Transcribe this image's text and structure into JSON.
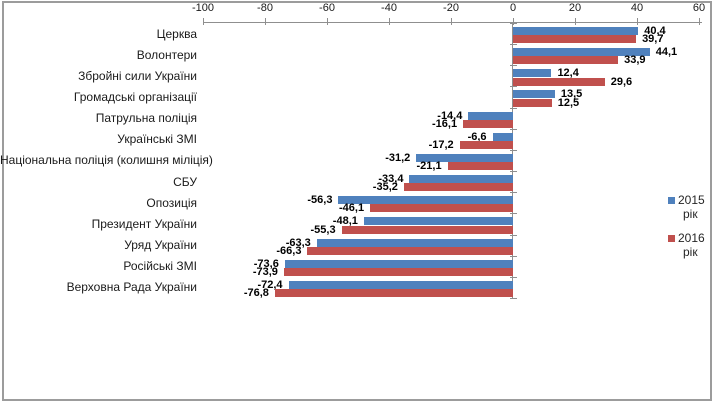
{
  "chart_data": {
    "type": "bar",
    "orientation": "horizontal",
    "title": "",
    "xlabel": "",
    "ylabel": "",
    "grid": false,
    "decimal_separator": ",",
    "categories": [
      "Церква",
      "Волонтери",
      "Збройні сили України",
      "Громадські організації",
      "Патрульна поліція",
      "Українські ЗМІ",
      "Національна поліція (колишня міліція)",
      "СБУ",
      "Опозиція",
      "Президент України",
      "Уряд України",
      "Російські ЗМІ",
      "Верховна Рада України"
    ],
    "series": [
      {
        "name": "2015 рік",
        "color": "#4f81bd",
        "values": [
          40.4,
          44.1,
          12.4,
          13.5,
          -14.4,
          -6.6,
          -31.2,
          -33.4,
          -56.3,
          -48.1,
          -63.3,
          -73.6,
          -72.4
        ]
      },
      {
        "name": "2016 рік",
        "color": "#c0504d",
        "values": [
          39.7,
          33.9,
          29.6,
          12.5,
          -16.1,
          -17.2,
          -21.1,
          -35.2,
          -46.1,
          -55.3,
          -66.3,
          -73.9,
          -76.8
        ]
      }
    ],
    "value_axis": {
      "min": -100,
      "max": 60,
      "tick_step": 20,
      "tick_labels": [
        "-100",
        "-80",
        "-60",
        "-40",
        "-20",
        "0",
        "20",
        "40",
        "60"
      ]
    },
    "legend_position": "right"
  },
  "legend": {
    "items": [
      {
        "year": "2015",
        "unit": "рік",
        "color": "#4f81bd"
      },
      {
        "year": "2016",
        "unit": "рік",
        "color": "#c0504d"
      }
    ]
  },
  "colors": {
    "axis": "#8f8f8f",
    "frame_border": "#9c9c9c",
    "series_2015": "#4f81bd",
    "series_2016": "#c0504d"
  }
}
